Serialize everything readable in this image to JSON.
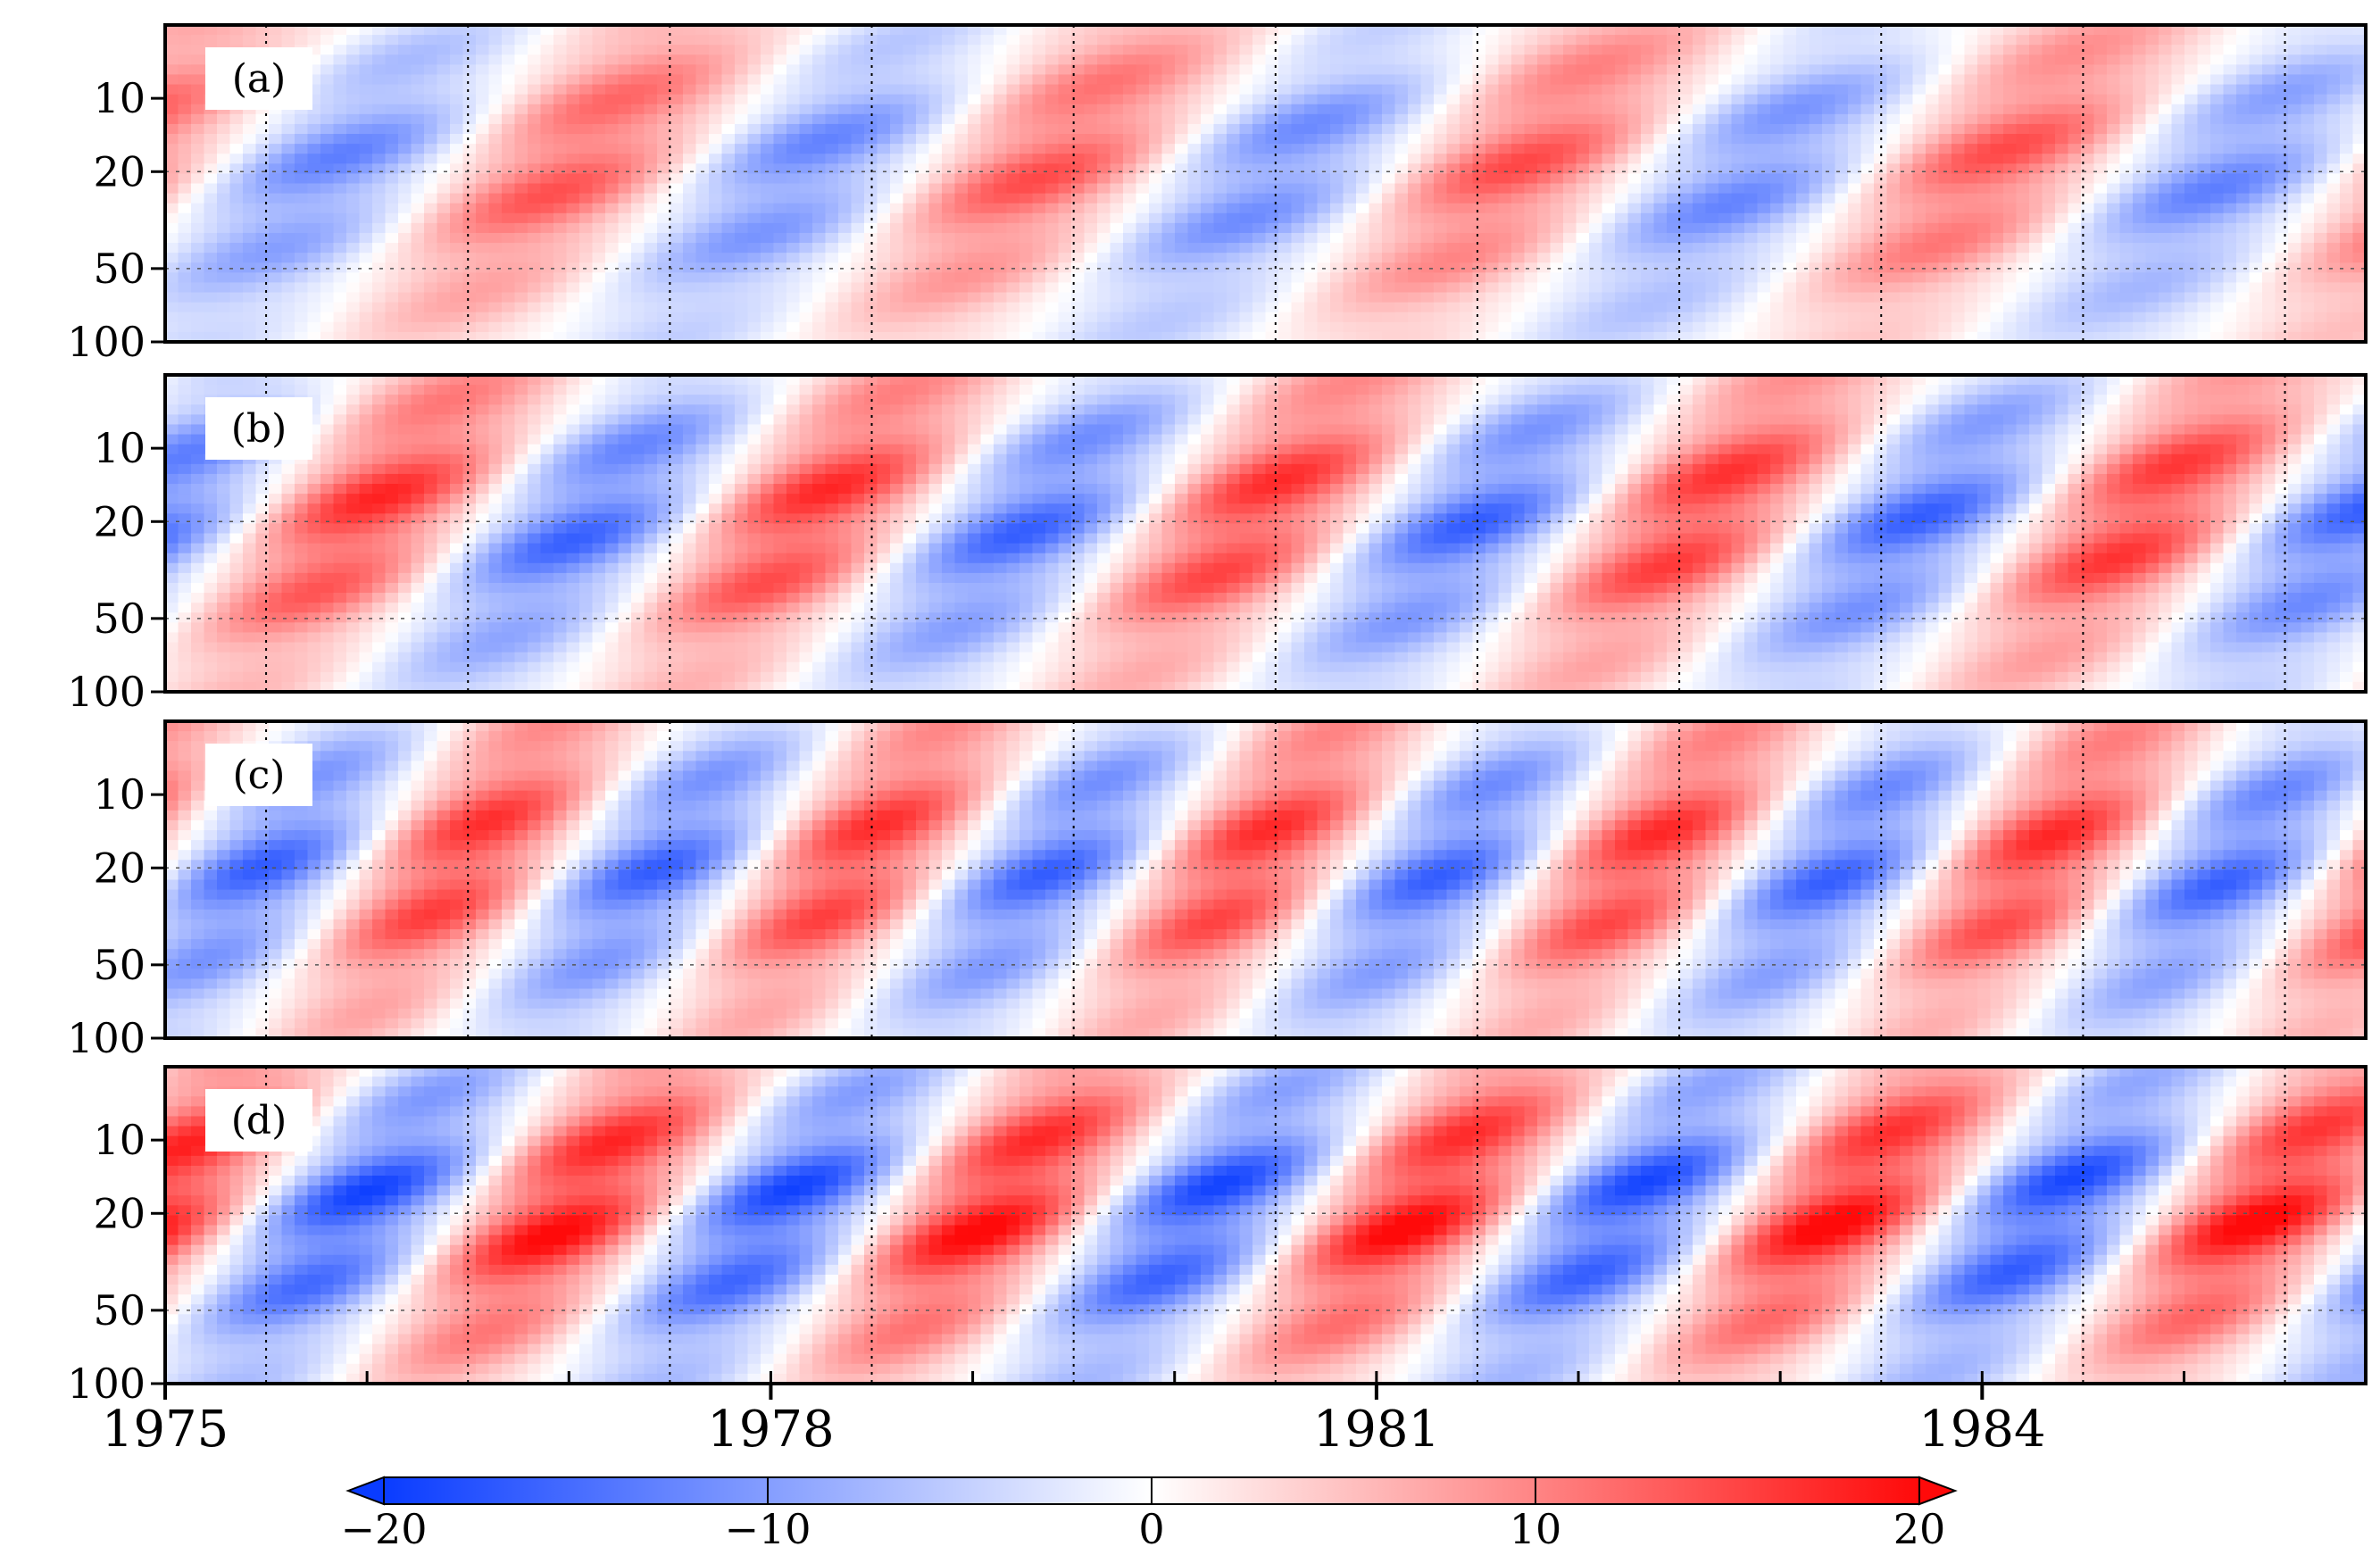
{
  "chart_data": {
    "type": "heatmap",
    "title": "",
    "xlabel": "",
    "ylabel": "",
    "x_range": [
      1975,
      1985.9
    ],
    "x_ticks": [
      1975,
      1978,
      1981,
      1984
    ],
    "x_tick_labels": [
      "1975",
      "1978",
      "1981",
      "1984"
    ],
    "y_ticks": [
      10,
      20,
      50,
      100
    ],
    "y_tick_labels": [
      "10",
      "20",
      "50",
      "100"
    ],
    "y_scale": "log",
    "y_range": [
      100,
      5
    ],
    "panels": [
      {
        "label": "(a)",
        "period_years": 2.35,
        "phase": 0.15,
        "amplitude": 13
      },
      {
        "label": "(b)",
        "period_years": 2.2,
        "phase": 0.55,
        "amplitude": 16
      },
      {
        "label": "(c)",
        "period_years": 1.95,
        "phase": 0.25,
        "amplitude": 16
      },
      {
        "label": "(d)",
        "period_years": 2.1,
        "phase": 0.05,
        "amplitude": 19
      }
    ],
    "colorbar": {
      "min": -20,
      "max": 20,
      "ticks": [
        -20,
        -10,
        0,
        10,
        20
      ],
      "tick_labels": [
        "−20",
        "−10",
        "0",
        "10",
        "20"
      ],
      "low_color": "#0a3cff",
      "mid_color": "#ffffff",
      "high_color": "#ff0a0a"
    }
  }
}
